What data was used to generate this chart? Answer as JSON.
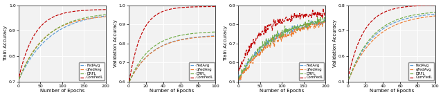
{
  "plots": [
    {
      "ylabel": "Train Accuracy",
      "xlabel": "Number of Epochs",
      "xlim": [
        0,
        200
      ],
      "ylim": [
        0.7,
        1.0
      ],
      "yticks": [
        0.7,
        0.8,
        0.9,
        1.0
      ],
      "xticks": [
        0,
        50,
        100,
        150,
        200
      ],
      "noisy": false,
      "curves": [
        {
          "name": "FedAvg",
          "color": "#5b9bd5",
          "start": 0.71,
          "end": 0.958,
          "rate": 2.8,
          "seed": 10
        },
        {
          "name": "qFedAvg",
          "color": "#ed7d31",
          "start": 0.71,
          "end": 0.955,
          "rate": 3.5,
          "seed": 20
        },
        {
          "name": "DRFL",
          "color": "#70ad47",
          "start": 0.71,
          "end": 0.963,
          "rate": 3.2,
          "seed": 30
        },
        {
          "name": "ComFedL",
          "color": "#c00000",
          "start": 0.72,
          "end": 0.983,
          "rate": 5.5,
          "seed": 40
        }
      ]
    },
    {
      "ylabel": "Validation Accuracy",
      "xlabel": "Number of Epochs",
      "xlim": [
        0,
        100
      ],
      "ylim": [
        0.6,
        1.0
      ],
      "yticks": [
        0.6,
        0.7,
        0.8,
        0.9,
        1.0
      ],
      "xticks": [
        0,
        20,
        40,
        60,
        80,
        100
      ],
      "noisy": false,
      "curves": [
        {
          "name": "FedAvg",
          "color": "#5b9bd5",
          "start": 0.6,
          "end": 0.84,
          "rate": 3.8,
          "seed": 10
        },
        {
          "name": "qFedAvg",
          "color": "#ed7d31",
          "start": 0.6,
          "end": 0.838,
          "rate": 3.8,
          "seed": 20
        },
        {
          "name": "DRFL",
          "color": "#70ad47",
          "start": 0.6,
          "end": 0.86,
          "rate": 4.2,
          "seed": 30
        },
        {
          "name": "ComFedL",
          "color": "#c00000",
          "start": 0.605,
          "end": 0.993,
          "rate": 7.0,
          "seed": 40
        }
      ]
    },
    {
      "ylabel": "Train Accuracy",
      "xlabel": "Number of Epochs",
      "xlim": [
        0,
        200
      ],
      "ylim": [
        0.5,
        0.9
      ],
      "yticks": [
        0.5,
        0.6,
        0.7,
        0.8,
        0.9
      ],
      "xticks": [
        0,
        50,
        100,
        150,
        200
      ],
      "noisy": true,
      "noise_scale": 0.01,
      "curves": [
        {
          "name": "FedAvg",
          "color": "#5b9bd5",
          "start": 0.52,
          "end": 0.815,
          "rate": 2.5,
          "seed": 11
        },
        {
          "name": "qFedAvg",
          "color": "#ed7d31",
          "start": 0.51,
          "end": 0.808,
          "rate": 2.2,
          "seed": 21
        },
        {
          "name": "DRFL",
          "color": "#70ad47",
          "start": 0.52,
          "end": 0.82,
          "rate": 2.6,
          "seed": 31
        },
        {
          "name": "ComFedL",
          "color": "#c00000",
          "start": 0.56,
          "end": 0.855,
          "rate": 4.0,
          "seed": 41
        }
      ]
    },
    {
      "ylabel": "Validation Accuracy",
      "xlabel": "Number of Epochs",
      "xlim": [
        0,
        100
      ],
      "ylim": [
        0.5,
        0.8
      ],
      "yticks": [
        0.5,
        0.6,
        0.7,
        0.8
      ],
      "xticks": [
        0,
        20,
        40,
        60,
        80,
        100
      ],
      "noisy": false,
      "curves": [
        {
          "name": "FedAvg",
          "color": "#5b9bd5",
          "start": 0.51,
          "end": 0.765,
          "rate": 3.5,
          "seed": 10
        },
        {
          "name": "qFedAvg",
          "color": "#ed7d31",
          "start": 0.51,
          "end": 0.758,
          "rate": 3.2,
          "seed": 20
        },
        {
          "name": "DRFL",
          "color": "#70ad47",
          "start": 0.51,
          "end": 0.772,
          "rate": 3.6,
          "seed": 30
        },
        {
          "name": "ComFedL",
          "color": "#c00000",
          "start": 0.53,
          "end": 0.8,
          "rate": 5.5,
          "seed": 40
        }
      ]
    }
  ],
  "legend_labels": [
    "FedAvg",
    "qFedAvg",
    "DRFL",
    "ComFedL"
  ],
  "legend_colors": [
    "#5b9bd5",
    "#ed7d31",
    "#70ad47",
    "#c00000"
  ],
  "bg_color": "#f2f2f2"
}
